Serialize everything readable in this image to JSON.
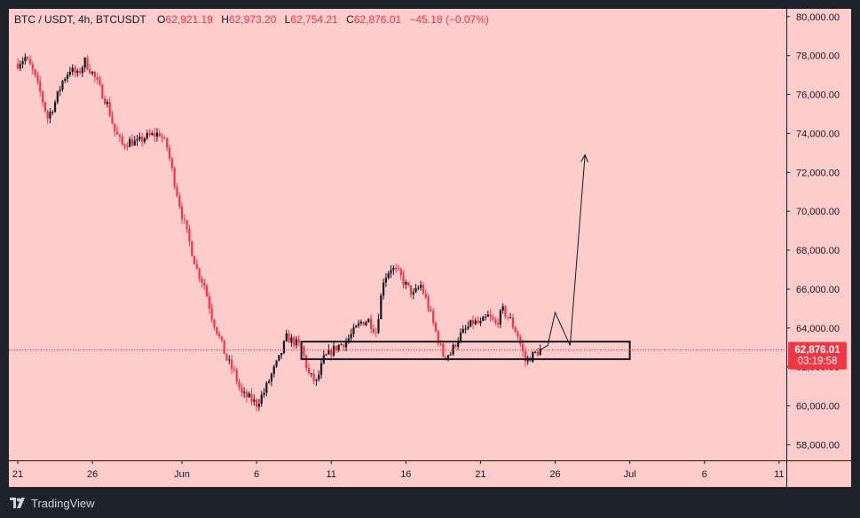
{
  "legend": {
    "symbol": "BTC / USDT, 4h, BTCUSDT",
    "o_label": "O",
    "o_val": "62,921.19",
    "h_label": "H",
    "h_val": "62,973.20",
    "l_label": "L",
    "l_val": "62,754.21",
    "c_label": "C",
    "c_val": "62,876.01",
    "change": "−45.18 (−0.07%)"
  },
  "price_tag": {
    "price": "62,876.01",
    "countdown": "03:19:58"
  },
  "footer": {
    "brand": "TradingView"
  },
  "colors": {
    "background": "#ffcccc",
    "down_candle": "#f23645",
    "up_candle": "#131722",
    "price_line": "#f23645",
    "axis_text": "#131722"
  },
  "chart_data": {
    "type": "candlestick",
    "title": "BTC / USDT, 4h, BTCUSDT",
    "ylim": [
      57200,
      80400
    ],
    "yticks": [
      58000,
      60000,
      62000,
      64000,
      66000,
      68000,
      70000,
      72000,
      74000,
      76000,
      78000,
      80000
    ],
    "ytick_labels": [
      "58,000.00",
      "60,000.00",
      "62,000.00",
      "64,000.00",
      "66,000.00",
      "68,000.00",
      "70,000.00",
      "72,000.00",
      "74,000.00",
      "76,000.00",
      "78,000.00",
      "80,000.00"
    ],
    "xticks": [
      {
        "label": "21",
        "date": "2024-05-21"
      },
      {
        "label": "26",
        "date": "2024-05-26"
      },
      {
        "label": "Jun",
        "date": "2024-06-01"
      },
      {
        "label": "6",
        "date": "2024-06-06"
      },
      {
        "label": "11",
        "date": "2024-06-11"
      },
      {
        "label": "16",
        "date": "2024-06-16"
      },
      {
        "label": "21",
        "date": "2024-06-21"
      },
      {
        "label": "26",
        "date": "2024-06-26"
      },
      {
        "label": "Jul",
        "date": "2024-07-01"
      },
      {
        "label": "6",
        "date": "2024-07-06"
      },
      {
        "label": "11",
        "date": "2024-07-11"
      }
    ],
    "close_path": [
      [
        "2024-05-21",
        77600
      ],
      [
        "2024-05-21T12",
        77900
      ],
      [
        "2024-05-22",
        77200
      ],
      [
        "2024-05-22T12",
        76100
      ],
      [
        "2024-05-23",
        74800
      ],
      [
        "2024-05-23T12",
        75600
      ],
      [
        "2024-05-24",
        76700
      ],
      [
        "2024-05-24T12",
        77300
      ],
      [
        "2024-05-25",
        77000
      ],
      [
        "2024-05-25T12",
        77700
      ],
      [
        "2024-05-26",
        77100
      ],
      [
        "2024-05-26T12",
        76300
      ],
      [
        "2024-05-27",
        75500
      ],
      [
        "2024-05-27T12",
        74100
      ],
      [
        "2024-05-28",
        73400
      ],
      [
        "2024-05-28T12",
        73600
      ],
      [
        "2024-05-29",
        73500
      ],
      [
        "2024-05-29T12",
        73800
      ],
      [
        "2024-05-30",
        73900
      ],
      [
        "2024-05-30T12",
        74000
      ],
      [
        "2024-05-31",
        73300
      ],
      [
        "2024-05-31T12",
        71500
      ],
      [
        "2024-06-01",
        69800
      ],
      [
        "2024-06-01T12",
        68400
      ],
      [
        "2024-06-02",
        67000
      ],
      [
        "2024-06-02T12",
        66200
      ],
      [
        "2024-06-03",
        64600
      ],
      [
        "2024-06-03T12",
        63500
      ],
      [
        "2024-06-04",
        62400
      ],
      [
        "2024-06-04T12",
        61700
      ],
      [
        "2024-06-05",
        60600
      ],
      [
        "2024-06-05T12",
        60400
      ],
      [
        "2024-06-06",
        60100
      ],
      [
        "2024-06-06T12",
        60700
      ],
      [
        "2024-06-07",
        61600
      ],
      [
        "2024-06-07T12",
        62400
      ],
      [
        "2024-06-08",
        63500
      ],
      [
        "2024-06-08T12",
        63300
      ],
      [
        "2024-06-09",
        63000
      ],
      [
        "2024-06-09T12",
        61600
      ],
      [
        "2024-06-10",
        61200
      ],
      [
        "2024-06-10T12",
        62400
      ],
      [
        "2024-06-11",
        62800
      ],
      [
        "2024-06-11T12",
        63100
      ],
      [
        "2024-06-12",
        63300
      ],
      [
        "2024-06-12T12",
        63800
      ],
      [
        "2024-06-13",
        64300
      ],
      [
        "2024-06-13T12",
        64400
      ],
      [
        "2024-06-14",
        63800
      ],
      [
        "2024-06-14T12",
        66500
      ],
      [
        "2024-06-15",
        67100
      ],
      [
        "2024-06-15T12",
        66800
      ],
      [
        "2024-06-16",
        66200
      ],
      [
        "2024-06-16T12",
        65700
      ],
      [
        "2024-06-17",
        66200
      ],
      [
        "2024-06-17T12",
        65100
      ],
      [
        "2024-06-18",
        63800
      ],
      [
        "2024-06-18T12",
        62600
      ],
      [
        "2024-06-19",
        62700
      ],
      [
        "2024-06-19T12",
        63500
      ],
      [
        "2024-06-20",
        63900
      ],
      [
        "2024-06-20T12",
        64300
      ],
      [
        "2024-06-21",
        64200
      ],
      [
        "2024-06-21T12",
        64600
      ],
      [
        "2024-06-22",
        64200
      ],
      [
        "2024-06-22T12",
        64900
      ],
      [
        "2024-06-23",
        64400
      ],
      [
        "2024-06-23T12",
        63600
      ],
      [
        "2024-06-24",
        62300
      ],
      [
        "2024-06-24T12",
        62600
      ],
      [
        "2024-06-25",
        62876
      ]
    ],
    "zone": {
      "from": "2024-06-09",
      "to": "2024-07-01",
      "low": 62400,
      "high": 63300
    },
    "projection": [
      [
        "2024-06-25",
        62876
      ],
      [
        "2024-06-25T12",
        63100
      ],
      [
        "2024-06-26",
        64800
      ],
      [
        "2024-06-27",
        63100
      ],
      [
        "2024-06-28",
        72900
      ]
    ],
    "last_price": 62876.01
  }
}
